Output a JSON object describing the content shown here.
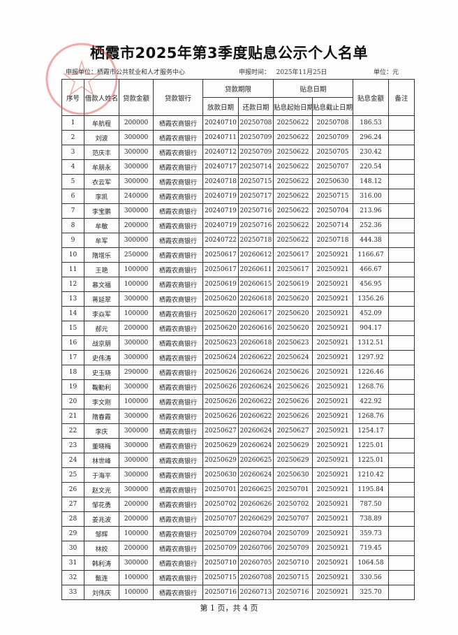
{
  "title": "栖霞市2025年第3季度贴息公示个人名单",
  "info": {
    "unit_label": "申报单位：",
    "unit": "栖霞市公共就业和人才服务中心",
    "time_label": "申报时间：",
    "time": "2025年11月25日",
    "currency_label": "单位：",
    "currency": "元"
  },
  "headers": {
    "no": "序号",
    "name": "借款人姓名",
    "amount": "贷款金额",
    "bank": "贷款银行",
    "loan_period": "贷款期限",
    "issue_date": "放款日期",
    "repay_date": "还款日期",
    "subsidy_period": "贴息日期",
    "subsidy_start": "贴息起始日期",
    "subsidy_end": "贴息截止日期",
    "subsidy_amount": "贴息金额",
    "remark": "备注"
  },
  "rows": [
    [
      "1",
      "牟航程",
      "200000",
      "栖霞农商银行",
      "20240710",
      "20250708",
      "20250622",
      "20250708",
      "186.53",
      ""
    ],
    [
      "2",
      "刘波",
      "300000",
      "栖霞农商银行",
      "20240711",
      "20250709",
      "20250622",
      "20250709",
      "296.24",
      ""
    ],
    [
      "3",
      "范庆丰",
      "300000",
      "栖霞农商银行",
      "20240712",
      "20250709",
      "20250622",
      "20250705",
      "230.42",
      ""
    ],
    [
      "4",
      "牟朋永",
      "300000",
      "栖霞农商银行",
      "20240717",
      "20250714",
      "20250622",
      "20250707",
      "220.54",
      ""
    ],
    [
      "5",
      "衣云军",
      "300000",
      "栖霞农商银行",
      "20240718",
      "20250715",
      "20250622",
      "20250630",
      "148.12",
      ""
    ],
    [
      "6",
      "李凯",
      "240000",
      "栖霞农商银行",
      "20240719",
      "20250717",
      "20250622",
      "20250715",
      "316.00",
      ""
    ],
    [
      "7",
      "李宝鹏",
      "300000",
      "栖霞农商银行",
      "20240719",
      "20250716",
      "20250622",
      "20250704",
      "213.96",
      ""
    ],
    [
      "8",
      "牟敏",
      "200000",
      "栖霞农商银行",
      "20240719",
      "20250716",
      "20250622",
      "20250714",
      "252.36",
      ""
    ],
    [
      "9",
      "牟军",
      "300000",
      "栖霞农商银行",
      "20240722",
      "20250718",
      "20250622",
      "20250718",
      "444.38",
      ""
    ],
    [
      "10",
      "隋增乐",
      "250000",
      "栖霞农商银行",
      "20250617",
      "20260612",
      "20250617",
      "20250921",
      "1166.67",
      ""
    ],
    [
      "11",
      "王艳",
      "100000",
      "栖霞农商银行",
      "20250617",
      "20260611",
      "20250617",
      "20250921",
      "466.67",
      ""
    ],
    [
      "12",
      "慕文福",
      "100000",
      "栖霞农商银行",
      "20250619",
      "20260615",
      "20250619",
      "20250921",
      "456.95",
      ""
    ],
    [
      "13",
      "蒋延翠",
      "300000",
      "栖霞农商银行",
      "20250620",
      "20260618",
      "20250620",
      "20250921",
      "1356.26",
      ""
    ],
    [
      "14",
      "李焱军",
      "100000",
      "栖霞农商银行",
      "20250620",
      "20260617",
      "20250620",
      "20250921",
      "452.09",
      ""
    ],
    [
      "15",
      "郝元",
      "200000",
      "栖霞农商银行",
      "20250620",
      "20260616",
      "20250620",
      "20250921",
      "904.17",
      ""
    ],
    [
      "16",
      "战京朋",
      "300000",
      "栖霞农商银行",
      "20250623",
      "20260618",
      "20250623",
      "20250921",
      "1312.51",
      ""
    ],
    [
      "17",
      "史伟涛",
      "300000",
      "栖霞农商银行",
      "20250624",
      "20260622",
      "20250624",
      "20250921",
      "1297.92",
      ""
    ],
    [
      "18",
      "史玉晓",
      "290000",
      "栖霞农商银行",
      "20250626",
      "20260624",
      "20250626",
      "20250921",
      "1226.46",
      ""
    ],
    [
      "19",
      "鞠勤利",
      "300000",
      "栖霞农商银行",
      "20250626",
      "20260624",
      "20250626",
      "20250921",
      "1268.76",
      ""
    ],
    [
      "20",
      "李文刚",
      "100000",
      "栖霞农商银行",
      "20250626",
      "20260622",
      "20250626",
      "20250921",
      "422.92",
      ""
    ],
    [
      "21",
      "隋春霞",
      "300000",
      "栖霞农商银行",
      "20250626",
      "20260622",
      "20250626",
      "20250921",
      "1268.76",
      ""
    ],
    [
      "22",
      "李庆",
      "300000",
      "栖霞农商银行",
      "20250627",
      "20260624",
      "20250627",
      "20250921",
      "1254.17",
      ""
    ],
    [
      "23",
      "董晓梅",
      "300000",
      "栖霞农商银行",
      "20250629",
      "20260624",
      "20250629",
      "20250921",
      "1225.01",
      ""
    ],
    [
      "24",
      "林世峰",
      "300000",
      "栖霞农商银行",
      "20250629",
      "20260625",
      "20250629",
      "20250921",
      "1225.01",
      ""
    ],
    [
      "25",
      "于海平",
      "300000",
      "栖霞农商银行",
      "20250630",
      "20260624",
      "20250630",
      "20250921",
      "1210.42",
      ""
    ],
    [
      "26",
      "赵文光",
      "300000",
      "栖霞农商银行",
      "20250701",
      "20260625",
      "20250701",
      "20250921",
      "1195.84",
      ""
    ],
    [
      "27",
      "邹花勇",
      "200000",
      "栖霞农商银行",
      "20250702",
      "20260626",
      "20250702",
      "20250921",
      "787.50",
      ""
    ],
    [
      "28",
      "姜兆波",
      "200000",
      "栖霞农商银行",
      "20250707",
      "20260629",
      "20250707",
      "20250921",
      "738.89",
      ""
    ],
    [
      "29",
      "邹辉",
      "100000",
      "栖霞农商银行",
      "20250709",
      "20260704",
      "20250709",
      "20250921",
      "359.73",
      ""
    ],
    [
      "30",
      "林姣",
      "200000",
      "栖霞农商银行",
      "20250709",
      "20260706",
      "20250709",
      "20250921",
      "719.45",
      ""
    ],
    [
      "31",
      "韩利涛",
      "300000",
      "栖霞农商银行",
      "20250710",
      "20260705",
      "20250710",
      "20250921",
      "1064.58",
      ""
    ],
    [
      "32",
      "甄连",
      "100000",
      "栖霞农商银行",
      "20250715",
      "20260708",
      "20250715",
      "20250921",
      "330.56",
      ""
    ],
    [
      "33",
      "刘伟庆",
      "100000",
      "栖霞农商银行",
      "20250716",
      "20260713",
      "20250716",
      "20250921",
      "325.70",
      ""
    ]
  ],
  "footer": "第 1 页，共 4 页",
  "stamp": {
    "text": "栖霞市公共就业和人才服务中心",
    "color": "#e04848"
  }
}
